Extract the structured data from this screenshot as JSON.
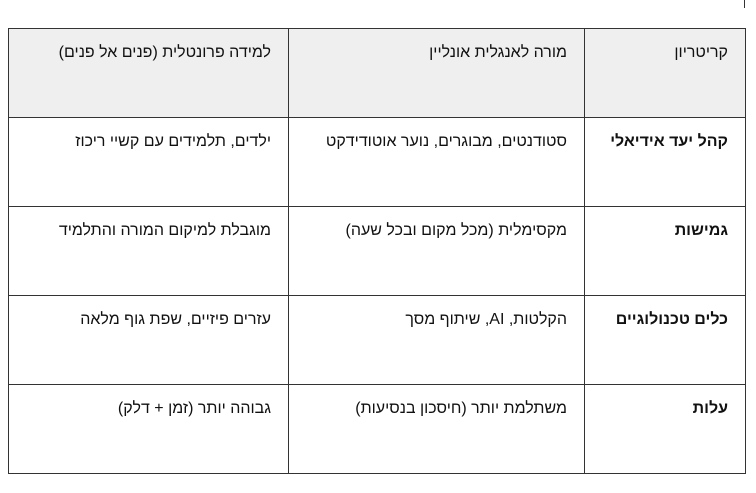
{
  "table": {
    "headers": [
      "קריטריון",
      "מורה לאנגלית אונליין",
      "למידה פרונטלית (פנים אל פנים)"
    ],
    "rows": [
      [
        "קהל יעד אידיאלי",
        "סטודנטים, מבוגרים, נוער אוטודידקט",
        "ילדים, תלמידים עם קשיי ריכוז"
      ],
      [
        "גמישות",
        "מקסימלית (מכל מקום ובכל שעה)",
        "מוגבלת למיקום המורה והתלמיד"
      ],
      [
        "כלים טכנולוגיים",
        "הקלטות, AI, שיתוף מסך",
        "עזרים פיזיים, שפת גוף מלאה"
      ],
      [
        "עלות",
        "משתלמת יותר (חיסכון בנסיעות)",
        "גבוהה יותר (זמן + דלק)"
      ]
    ]
  }
}
